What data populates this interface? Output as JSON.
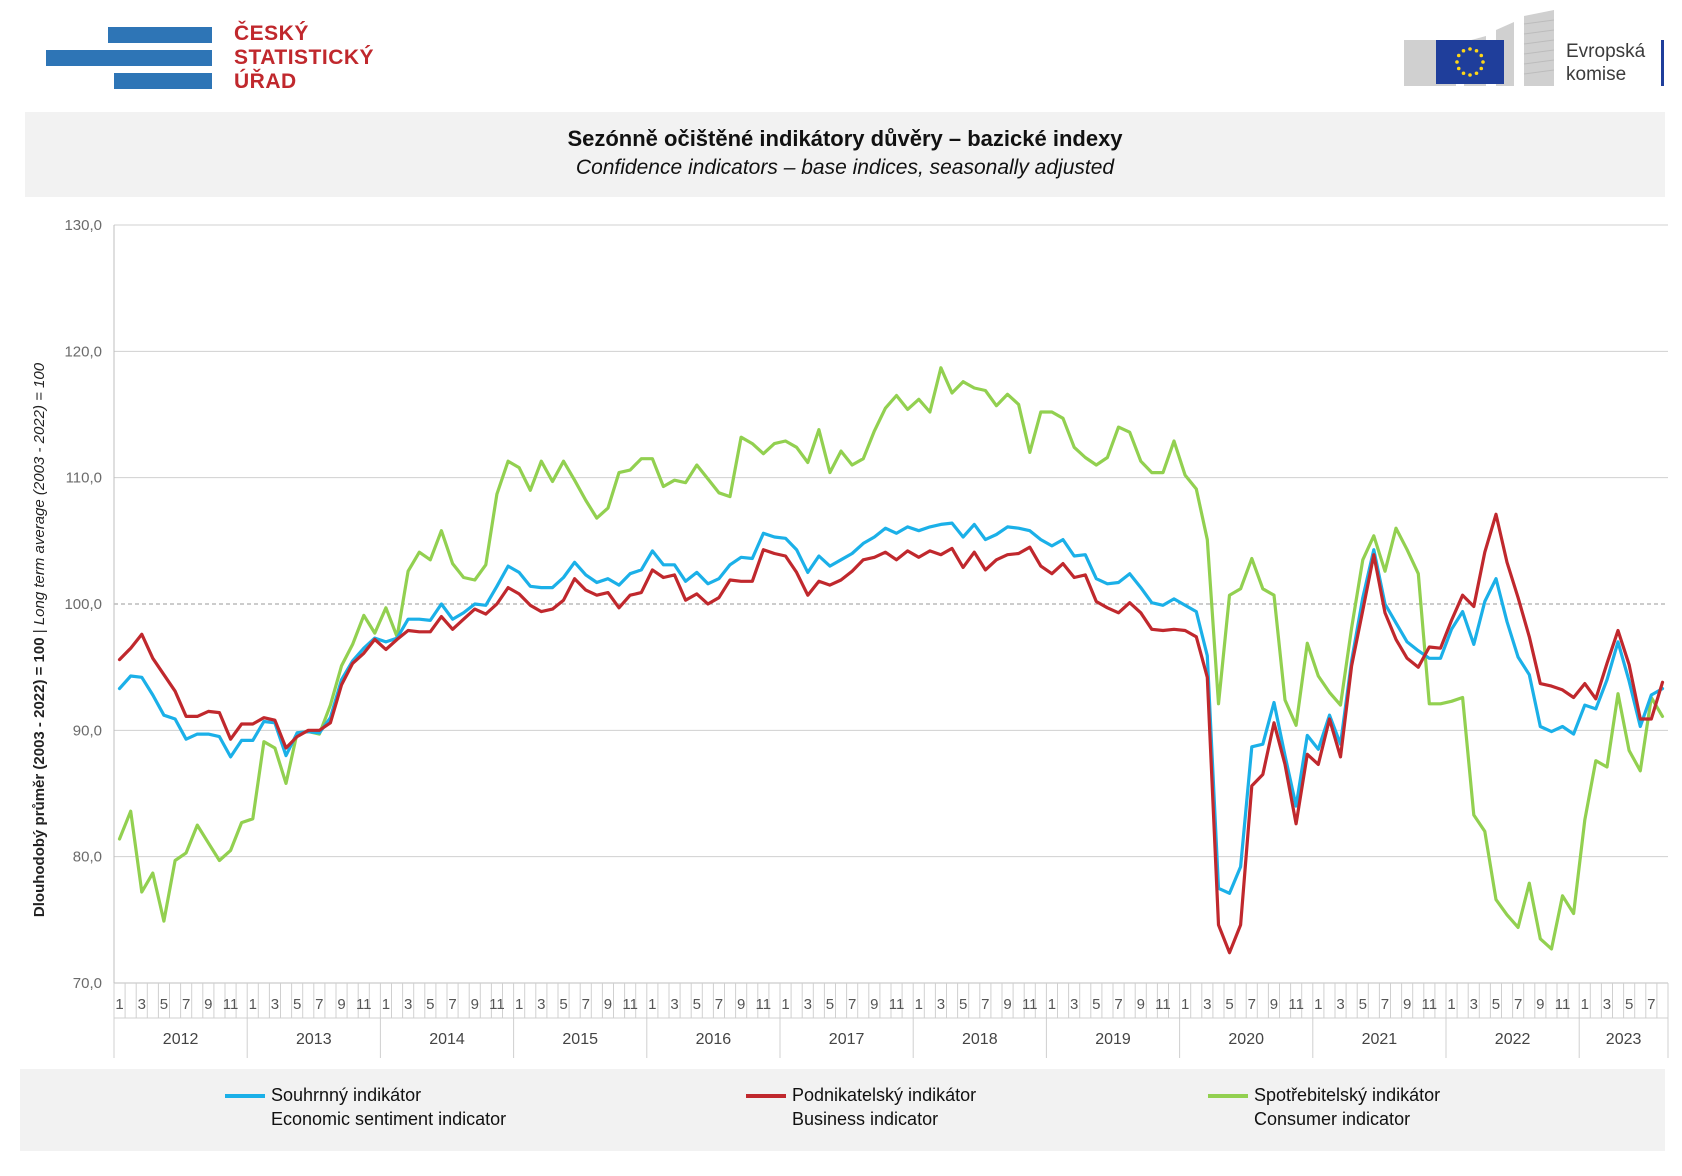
{
  "logo_left": {
    "line1": "ČESKÝ",
    "line2": "STATISTICKÝ",
    "line3": "ÚŘAD"
  },
  "logo_right": {
    "line1": "Evropská",
    "line2": "komise"
  },
  "colors": {
    "series1": "#1bb0e8",
    "series2": "#c0282d",
    "series3": "#92d050",
    "csu_blue": "#2e75b6",
    "csu_red": "#c0282d",
    "ec_blue": "#1f3e9b"
  },
  "chart_data": {
    "type": "line",
    "title": "Sezónně očištěné indikátory důvěry – bazické indexy",
    "subtitle": "Confidence indicators – base indices, seasonally adjusted",
    "ylabel": "Dlouhodobý průměr (2003 - 2022) = 100",
    "ylabel_italic": "Long term average (2003 - 2022) = 100",
    "ylabel_separator": " | ",
    "ylim": [
      70,
      130
    ],
    "yticks": [
      "70,0",
      "80,0",
      "90,0",
      "100,0",
      "110,0",
      "120,0",
      "130,0"
    ],
    "ytick_values": [
      70,
      80,
      90,
      100,
      110,
      120,
      130
    ],
    "grid": "horizontal",
    "legend_position": "bottom",
    "years": [
      "2012",
      "2013",
      "2014",
      "2015",
      "2016",
      "2017",
      "2018",
      "2019",
      "2020",
      "2021",
      "2022",
      "2023"
    ],
    "month_tick_labels": [
      "1",
      "3",
      "5",
      "7",
      "9",
      "11"
    ],
    "last_year_month_tick_labels": [
      "1",
      "3",
      "5",
      "7"
    ],
    "x_start": "2012-01",
    "series": [
      {
        "name": "Souhrnný indikátor",
        "name_en": "Economic sentiment indicator",
        "color": "#1bb0e8",
        "values": [
          93.3,
          94.3,
          94.2,
          92.8,
          91.2,
          90.9,
          89.3,
          89.7,
          89.7,
          89.5,
          87.9,
          89.2,
          89.2,
          90.7,
          90.6,
          88.0,
          89.8,
          89.9,
          89.8,
          91.0,
          94.0,
          95.5,
          96.5,
          97.3,
          97.0,
          97.3,
          98.8,
          98.8,
          98.7,
          100.0,
          98.8,
          99.3,
          100.0,
          99.9,
          101.4,
          103.0,
          102.5,
          101.4,
          101.3,
          101.3,
          102.1,
          103.3,
          102.3,
          101.7,
          102.0,
          101.5,
          102.4,
          102.7,
          104.2,
          103.1,
          103.1,
          101.8,
          102.5,
          101.6,
          102.0,
          103.1,
          103.7,
          103.6,
          105.6,
          105.3,
          105.2,
          104.3,
          102.5,
          103.8,
          103.0,
          103.5,
          104.0,
          104.8,
          105.3,
          106.0,
          105.6,
          106.1,
          105.8,
          106.1,
          106.3,
          106.4,
          105.3,
          106.3,
          105.1,
          105.5,
          106.1,
          106.0,
          105.8,
          105.1,
          104.6,
          105.1,
          103.8,
          103.9,
          102.0,
          101.6,
          101.7,
          102.4,
          101.3,
          100.1,
          99.9,
          100.4,
          99.9,
          99.4,
          95.9,
          77.5,
          77.1,
          79.2,
          88.7,
          88.9,
          92.2,
          88.0,
          84.0,
          89.6,
          88.5,
          91.2,
          88.9,
          95.5,
          100.5,
          104.3,
          100.0,
          98.5,
          97.0,
          96.3,
          95.7,
          95.7,
          98.0,
          99.4,
          96.8,
          100.2,
          102.0,
          98.6,
          95.8,
          94.4,
          90.3,
          89.9,
          90.3,
          89.7,
          92.0,
          91.7,
          94.0,
          97.0,
          93.9,
          90.3,
          92.8,
          93.3
        ]
      },
      {
        "name": "Podnikatelský indikátor",
        "name_en": "Business indicator",
        "color": "#c0282d",
        "values": [
          95.6,
          96.5,
          97.6,
          95.7,
          94.4,
          93.1,
          91.1,
          91.1,
          91.5,
          91.4,
          89.3,
          90.5,
          90.5,
          91.0,
          90.8,
          88.6,
          89.5,
          90.0,
          90.0,
          90.6,
          93.6,
          95.3,
          96.1,
          97.2,
          96.4,
          97.2,
          97.9,
          97.8,
          97.8,
          99.0,
          98.0,
          98.8,
          99.6,
          99.2,
          100.0,
          101.3,
          100.8,
          99.9,
          99.4,
          99.6,
          100.3,
          102.0,
          101.1,
          100.7,
          100.9,
          99.7,
          100.7,
          100.9,
          102.7,
          102.1,
          102.3,
          100.3,
          100.8,
          100.0,
          100.5,
          101.9,
          101.8,
          101.8,
          104.3,
          104.0,
          103.8,
          102.5,
          100.7,
          101.8,
          101.5,
          101.9,
          102.6,
          103.5,
          103.7,
          104.1,
          103.5,
          104.2,
          103.7,
          104.2,
          103.9,
          104.4,
          102.9,
          104.1,
          102.7,
          103.5,
          103.9,
          104.0,
          104.5,
          103.0,
          102.4,
          103.2,
          102.1,
          102.3,
          100.2,
          99.7,
          99.3,
          100.1,
          99.3,
          98.0,
          97.9,
          98.0,
          97.9,
          97.4,
          94.2,
          74.6,
          72.4,
          74.6,
          85.6,
          86.5,
          90.6,
          87.3,
          82.6,
          88.1,
          87.3,
          90.9,
          87.9,
          95.1,
          99.5,
          103.9,
          99.3,
          97.2,
          95.7,
          95.0,
          96.6,
          96.5,
          98.7,
          100.7,
          99.8,
          104.1,
          107.1,
          103.3,
          100.5,
          97.4,
          93.7,
          93.5,
          93.2,
          92.6,
          93.7,
          92.5,
          95.3,
          97.9,
          95.2,
          90.9,
          90.9,
          93.8
        ]
      },
      {
        "name": "Spotřebitelský indikátor",
        "name_en": "Consumer indicator",
        "color": "#92d050",
        "values": [
          81.4,
          83.6,
          77.2,
          78.7,
          74.9,
          79.7,
          80.3,
          82.5,
          81.1,
          79.7,
          80.5,
          82.7,
          83.0,
          89.1,
          88.6,
          85.8,
          89.8,
          89.9,
          89.7,
          92.0,
          95.1,
          96.8,
          99.1,
          97.7,
          99.7,
          97.4,
          102.6,
          104.1,
          103.5,
          105.8,
          103.2,
          102.1,
          101.9,
          103.1,
          108.7,
          111.3,
          110.8,
          109.0,
          111.3,
          109.7,
          111.3,
          109.8,
          108.2,
          106.8,
          107.6,
          110.4,
          110.6,
          111.5,
          111.5,
          109.3,
          109.8,
          109.6,
          111.0,
          109.9,
          108.8,
          108.5,
          113.2,
          112.7,
          111.9,
          112.7,
          112.9,
          112.4,
          111.2,
          113.8,
          110.4,
          112.1,
          111.0,
          111.5,
          113.7,
          115.5,
          116.5,
          115.4,
          116.2,
          115.2,
          118.7,
          116.7,
          117.6,
          117.1,
          116.9,
          115.7,
          116.6,
          115.8,
          112.0,
          115.2,
          115.2,
          114.7,
          112.4,
          111.6,
          111.0,
          111.6,
          114.0,
          113.6,
          111.3,
          110.4,
          110.4,
          112.9,
          110.2,
          109.1,
          105.1,
          92.1,
          100.7,
          101.2,
          103.6,
          101.2,
          100.7,
          92.4,
          90.4,
          96.9,
          94.3,
          93.0,
          92.0,
          98.1,
          103.5,
          105.4,
          102.6,
          106.0,
          104.3,
          102.4,
          92.1,
          92.1,
          92.3,
          92.6,
          83.3,
          82.0,
          76.6,
          75.4,
          74.4,
          77.9,
          73.5,
          72.7,
          76.9,
          75.5,
          82.9,
          87.6,
          87.1,
          92.9,
          88.4,
          86.8,
          92.6,
          91.1
        ]
      }
    ]
  }
}
